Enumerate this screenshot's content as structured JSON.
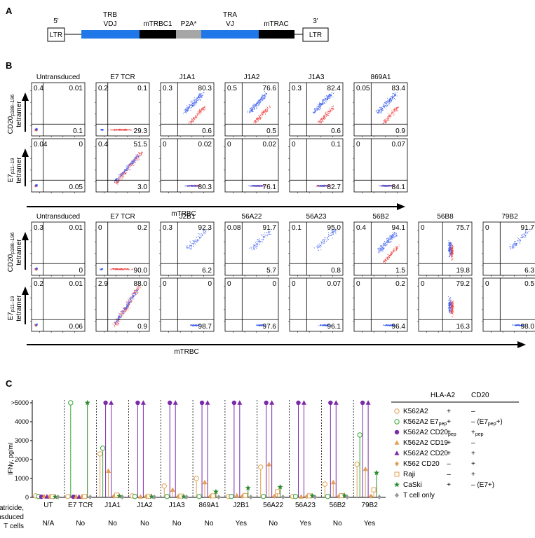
{
  "panel_a": {
    "letter": "A",
    "five_prime": "5'",
    "three_prime": "3'",
    "ltr_left": "LTR",
    "ltr_right": "LTR",
    "trb_line1": "TRB",
    "trb_line2": "VDJ",
    "mtrbc1": "mTRBC1",
    "p2a": "P2A*",
    "tra_line1": "TRA",
    "tra_line2": "VJ",
    "mtrac": "mTRAC",
    "colors": {
      "variable": "#1f77e8",
      "constant": "#000000",
      "p2a": "#a6a6a6"
    }
  },
  "panel_b": {
    "letter": "B",
    "xlabel": "mTRBC",
    "ylabel_cd20_line1": "CD20",
    "ylabel_cd20_sub": "p188–196",
    "ylabel_e7_line1": "E7",
    "ylabel_e7_sub": "p11–19",
    "ylabel_line2": "tetramer",
    "top_block": {
      "samples": [
        "Untransduced",
        "E7 TCR",
        "J1A1",
        "J1A2",
        "J1A3",
        "869A1"
      ],
      "cd20_row": [
        {
          "ul": "0.4",
          "ur": "0.01",
          "lr": "0.1"
        },
        {
          "ul": "0.2",
          "ur": "0.1",
          "lr": "29.3"
        },
        {
          "ul": "0.3",
          "ur": "80.3",
          "lr": "0.6"
        },
        {
          "ul": "0.5",
          "ur": "76.6",
          "lr": "0.5"
        },
        {
          "ul": "0.3",
          "ur": "82.4",
          "lr": "0.6"
        },
        {
          "ul": "0.05",
          "ur": "83.4",
          "lr": "0.9"
        }
      ],
      "e7_row": [
        {
          "ul": "0.04",
          "ur": "0",
          "lr": "0.05"
        },
        {
          "ul": "0.4",
          "ur": "51.5",
          "lr": "3.0"
        },
        {
          "ul": "0",
          "ur": "0.02",
          "lr": "80.3"
        },
        {
          "ul": "0",
          "ur": "0.02",
          "lr": "76.1"
        },
        {
          "ul": "0",
          "ur": "0.1",
          "lr": "82.7"
        },
        {
          "ul": "0",
          "ur": "0.07",
          "lr": "84.1"
        }
      ]
    },
    "bottom_block": {
      "samples": [
        "Untransduced",
        "E7 TCR",
        "J2B1",
        "56A22",
        "56A23",
        "56B2",
        "56B8",
        "79B2"
      ],
      "cd20_row": [
        {
          "ul": "0.3",
          "ur": "0.01",
          "lr": "0"
        },
        {
          "ul": "0",
          "ur": "0.2",
          "lr": "90.0"
        },
        {
          "ul": "0.3",
          "ur": "92.3",
          "lr": "6.2"
        },
        {
          "ul": "0.08",
          "ur": "91.7",
          "lr": "5.7"
        },
        {
          "ul": "0.1",
          "ur": "95.0",
          "lr": "0.8"
        },
        {
          "ul": "0.4",
          "ur": "94.1",
          "lr": "1.5"
        },
        {
          "ul": "0",
          "ur": "75.7",
          "lr": "19.8"
        },
        {
          "ul": "0",
          "ur": "91.7",
          "lr": "6.3"
        }
      ],
      "e7_row": [
        {
          "ul": "0.2",
          "ur": "0.01",
          "lr": "0.06"
        },
        {
          "ul": "2.9",
          "ur": "88.0",
          "lr": "0.9"
        },
        {
          "ul": "0",
          "ur": "0",
          "lr": "98.7"
        },
        {
          "ul": "0",
          "ur": "0",
          "lr": "97.6"
        },
        {
          "ul": "0",
          "ur": "0.07",
          "lr": "96.1"
        },
        {
          "ul": "0",
          "ur": "0.2",
          "lr": "96.4"
        },
        {
          "ul": "0",
          "ur": "79.2",
          "lr": "16.3"
        },
        {
          "ul": "0",
          "ur": "0.5",
          "lr": "98.0"
        }
      ]
    }
  },
  "panel_c": {
    "letter": "C",
    "ylabel": "IFNγ, pg/ml",
    "yticks": [
      ">5000",
      "4000",
      "3000",
      "2000",
      "1000",
      "0"
    ],
    "groups": [
      "UT",
      "E7 TCR",
      "J1A1",
      "J1A2",
      "J1A3",
      "869A1",
      "J2B1",
      "56A22",
      "56A23",
      "56B2",
      "79B2"
    ],
    "fratricide_label_line1": "Fratricide,",
    "fratricide_label_line2": "transduced",
    "fratricide_label_line3": "T cells",
    "fratricide": [
      "N/A",
      "No",
      "No",
      "No",
      "No",
      "No",
      "Yes",
      "No",
      "Yes",
      "No",
      "Yes"
    ],
    "legend_header_hla": "HLA-A2",
    "legend_header_cd20": "CD20",
    "legend": [
      {
        "name": "K562A2",
        "sub": "",
        "hla": "+",
        "cd20": "–",
        "cd20_sub": "",
        "marker": "circle-open",
        "color": "#e3a052"
      },
      {
        "name": "K562A2 E7",
        "sub": "pep",
        "hla": "+",
        "cd20": "– (E7",
        "cd20_sub": "pep",
        "cd20_tail": "+)",
        "marker": "circle-open",
        "color": "#36a836"
      },
      {
        "name": "K562A2 CD20",
        "sub": "pep",
        "hla": "+",
        "cd20": "+",
        "cd20_sub": "pep",
        "marker": "circle-fill",
        "color": "#7b2aa8"
      },
      {
        "name": "K562A2 CD19",
        "sub": "",
        "hla": "+",
        "cd20": "–",
        "cd20_sub": "",
        "marker": "triangle-fill",
        "color": "#e3a052"
      },
      {
        "name": "K562A2 CD20",
        "sub": "",
        "hla": "+",
        "cd20": "+",
        "cd20_sub": "",
        "marker": "triangle-fill",
        "color": "#7b2aa8"
      },
      {
        "name": "K562 CD20",
        "sub": "",
        "hla": "–",
        "cd20": "+",
        "cd20_sub": "",
        "marker": "diamond-fill",
        "color": "#e3a052"
      },
      {
        "name": "Raji",
        "sub": "",
        "hla": "–",
        "cd20": "+",
        "cd20_sub": "",
        "marker": "square-open",
        "color": "#e3a052"
      },
      {
        "name": "CaSki",
        "sub": "",
        "hla": "+",
        "cd20": "– (E7+)",
        "cd20_sub": "",
        "marker": "star-fill",
        "color": "#2e8b2e"
      },
      {
        "name": "T cell only",
        "sub": "",
        "hla": "",
        "cd20": "",
        "cd20_sub": "",
        "marker": "diamond-fill",
        "color": "#999999"
      }
    ],
    "chart_data": {
      "type": "scatter",
      "title": "",
      "xlabel": "",
      "ylabel": "IFNγ, pg/ml",
      "ylim": [
        0,
        5000
      ],
      "categories": [
        "UT",
        "E7 TCR",
        "J1A1",
        "J1A2",
        "J1A3",
        "869A1",
        "J2B1",
        "56A22",
        "56A23",
        "56B2",
        "79B2"
      ],
      "series": [
        {
          "name": "K562A2",
          "values": [
            80,
            50,
            2300,
            80,
            600,
            1000,
            50,
            1600,
            50,
            700,
            1750
          ]
        },
        {
          "name": "K562A2 E7pep",
          "values": [
            50,
            5000,
            2600,
            50,
            50,
            50,
            50,
            50,
            50,
            50,
            3300
          ]
        },
        {
          "name": "K562A2 CD20pep",
          "values": [
            30,
            30,
            5000,
            5000,
            5000,
            5000,
            5000,
            5000,
            5000,
            5000,
            5000
          ]
        },
        {
          "name": "K562A2 CD19",
          "values": [
            60,
            40,
            1400,
            40,
            400,
            800,
            100,
            1750,
            40,
            800,
            1500
          ]
        },
        {
          "name": "K562A2 CD20",
          "values": [
            40,
            30,
            5000,
            5000,
            5000,
            5000,
            5000,
            5000,
            5000,
            5000,
            5000
          ]
        },
        {
          "name": "K562 CD20",
          "values": [
            40,
            30,
            60,
            40,
            40,
            50,
            60,
            60,
            40,
            50,
            60
          ]
        },
        {
          "name": "Raji",
          "values": [
            50,
            50,
            120,
            60,
            70,
            80,
            100,
            300,
            80,
            90,
            400
          ]
        },
        {
          "name": "CaSki",
          "values": [
            30,
            5000,
            60,
            40,
            40,
            300,
            500,
            550,
            80,
            100,
            1300
          ]
        },
        {
          "name": "T cell only",
          "values": [
            20,
            20,
            20,
            20,
            20,
            20,
            20,
            20,
            20,
            20,
            20
          ]
        }
      ]
    }
  }
}
